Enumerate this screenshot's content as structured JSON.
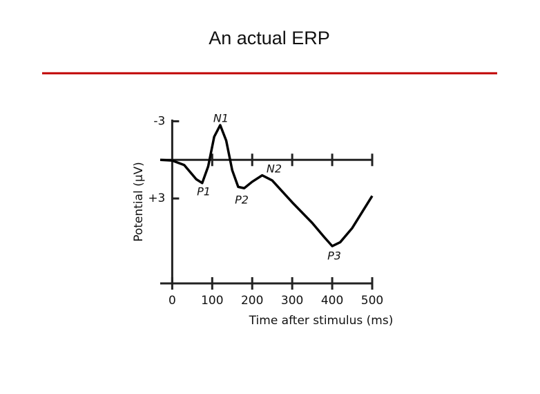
{
  "chart_data": {
    "type": "line",
    "title": "An actual ERP",
    "x_label": "Time after stimulus (ms)",
    "y_label": "Potential (µV)",
    "x": [
      -30,
      0,
      30,
      60,
      75,
      90,
      105,
      120,
      135,
      150,
      165,
      180,
      200,
      225,
      250,
      300,
      350,
      380,
      400,
      420,
      450,
      500
    ],
    "series": [
      {
        "color": "#000000",
        "values": [
          0,
          0.05,
          0.4,
          1.5,
          1.8,
          0.5,
          -1.8,
          -2.7,
          -1.5,
          0.8,
          2.1,
          2.2,
          1.7,
          1.2,
          1.6,
          3.3,
          4.9,
          6.0,
          6.7,
          6.4,
          5.3,
          2.8
        ]
      }
    ],
    "xlim": [
      -30,
      500
    ],
    "xticks": [
      0,
      100,
      200,
      300,
      400,
      500
    ],
    "ylim": [
      9.6,
      -3.4
    ],
    "yticks": [
      -3,
      {
        "value": 3,
        "label": "+3"
      }
    ],
    "annotations": [
      "N1",
      "P1",
      "P2",
      "N2",
      "P3"
    ]
  }
}
